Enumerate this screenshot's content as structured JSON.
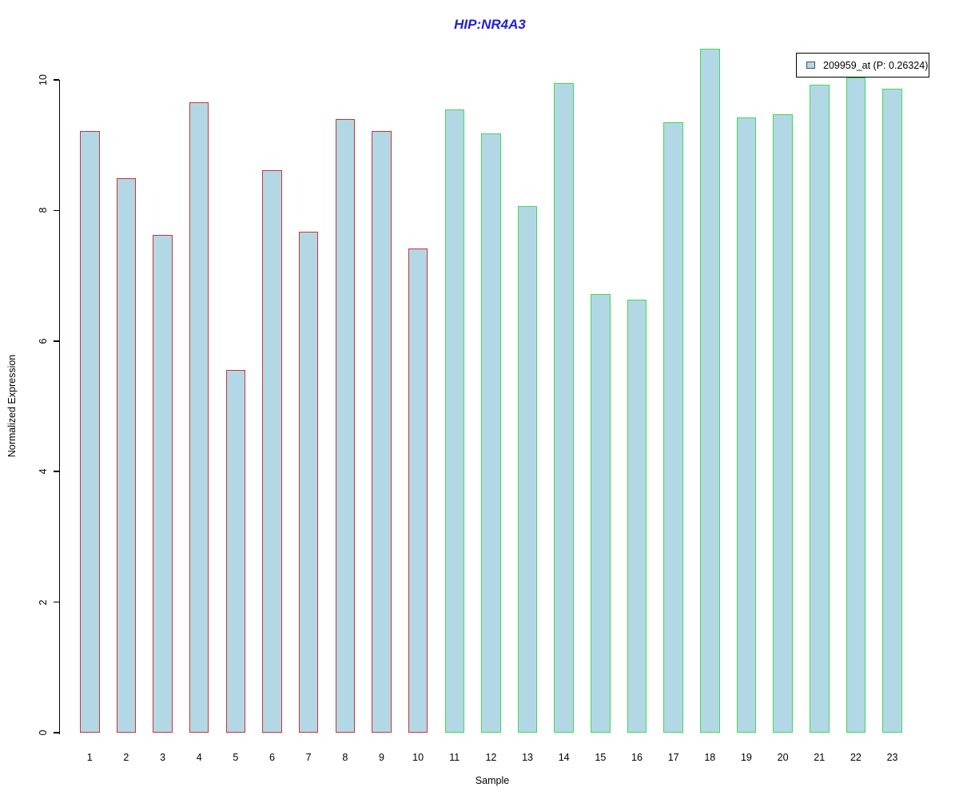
{
  "chart_data": {
    "type": "bar",
    "title": "HIP:NR4A3",
    "title_color": "#2121cd",
    "xlabel": "Sample",
    "ylabel": "Normalized Expression",
    "categories": [
      "1",
      "2",
      "3",
      "4",
      "5",
      "6",
      "7",
      "8",
      "9",
      "10",
      "11",
      "12",
      "13",
      "14",
      "15",
      "16",
      "17",
      "18",
      "19",
      "20",
      "21",
      "22",
      "23"
    ],
    "values": [
      9.22,
      8.5,
      7.62,
      9.66,
      5.56,
      8.62,
      7.68,
      9.4,
      9.22,
      7.42,
      9.55,
      9.18,
      8.06,
      9.95,
      6.72,
      6.64,
      9.35,
      10.48,
      9.43,
      9.47,
      9.93,
      10.04,
      9.86
    ],
    "ylim": [
      0,
      10.5
    ],
    "yticks": [
      0,
      2,
      4,
      6,
      8,
      10
    ],
    "grid": false,
    "bar_fill": "#b3d8e5",
    "bar_border_colors": {
      "samples_1_to_10": "#cc3333",
      "samples_11_to_23": "#42d952"
    },
    "border_color_split_after_index": 10,
    "axis_color": "#000000",
    "legend": {
      "label": "209959_at (P: 0.26324)",
      "position": "top-right",
      "key_fill": "#b3d8e5",
      "key_border": "#44505a"
    }
  }
}
